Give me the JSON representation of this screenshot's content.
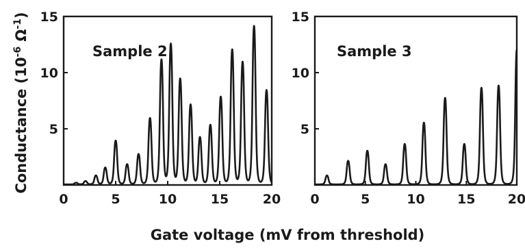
{
  "figure": {
    "xlabel": "Gate voltage (mV from threshold)",
    "ylabel_main": "Conductance (10",
    "ylabel_exp": "-6",
    "ylabel_unit": " Ω",
    "ylabel_unit_exp": "-1",
    "ylabel_close": ")"
  },
  "chart_data": [
    {
      "type": "line",
      "panel_label": "Sample 2",
      "xlim": [
        0,
        20
      ],
      "ylim": [
        0,
        15
      ],
      "x_ticks": [
        0,
        5,
        10,
        15,
        20
      ],
      "y_ticks": [
        5,
        10,
        15
      ],
      "series": [
        {
          "peak_positions": [
            1.2,
            2.1,
            3.1,
            4.0,
            5.0,
            6.1,
            7.2,
            8.3,
            9.4,
            10.3,
            11.2,
            12.2,
            13.1,
            14.1,
            15.1,
            16.2,
            17.2,
            18.3,
            19.5
          ],
          "peak_heights": [
            0.15,
            0.3,
            0.8,
            1.5,
            3.9,
            1.8,
            2.7,
            5.9,
            11.1,
            12.5,
            9.4,
            7.1,
            4.2,
            5.3,
            7.8,
            12.0,
            10.9,
            14.1,
            8.4
          ],
          "baseline": 0.05
        }
      ]
    },
    {
      "type": "line",
      "panel_label": "Sample 3",
      "xlim": [
        0,
        20
      ],
      "ylim": [
        0,
        15
      ],
      "x_ticks": [
        0,
        5,
        10,
        15,
        20
      ],
      "y_ticks": [
        5,
        10,
        15
      ],
      "series": [
        {
          "peak_positions": [
            1.2,
            3.3,
            5.2,
            7.0,
            8.9,
            10.8,
            12.9,
            14.8,
            16.5,
            18.2,
            20.0
          ],
          "peak_heights": [
            0.8,
            2.1,
            3.0,
            1.8,
            3.6,
            5.5,
            7.7,
            3.6,
            8.6,
            8.8,
            12.0
          ],
          "baseline": 0.05
        }
      ]
    }
  ]
}
